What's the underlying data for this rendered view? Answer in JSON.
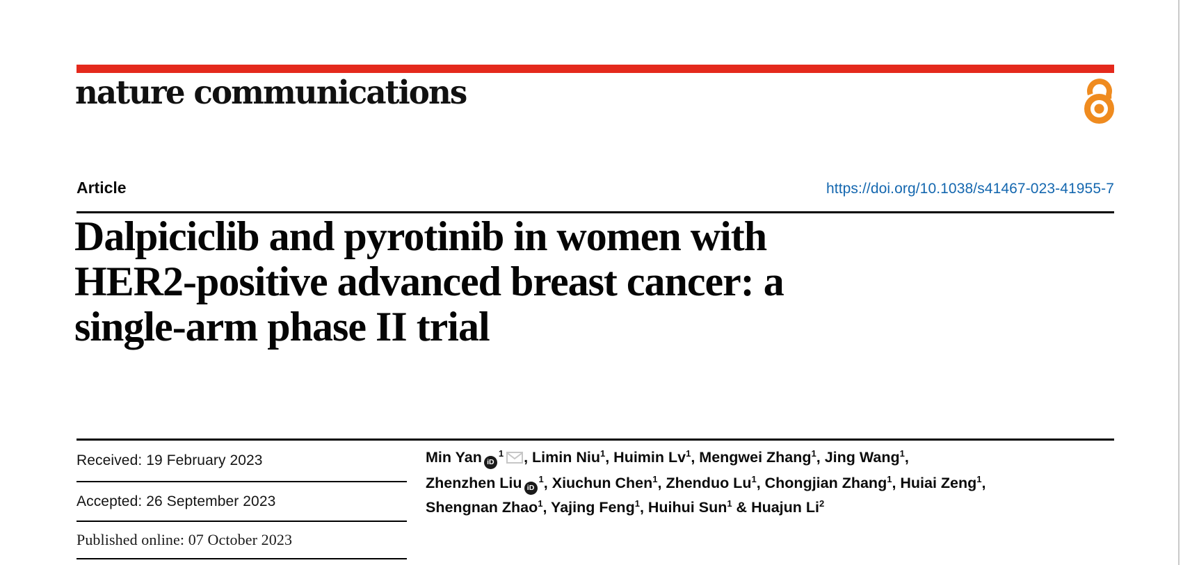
{
  "journal": {
    "name": "nature communications",
    "open_access_icon": "open-access-padlock"
  },
  "article": {
    "type_label": "Article",
    "doi": "https://doi.org/10.1038/s41467-023-41955-7",
    "title_lines": [
      "Dalpiciclib and pyrotinib in women with",
      "HER2-positive advanced breast cancer: a",
      "single-arm phase II trial"
    ]
  },
  "history": {
    "received": "Received: 19 February 2023",
    "accepted": "Accepted: 26 September 2023",
    "published": "Published online: 07 October 2023"
  },
  "authors": {
    "lines": [
      [
        {
          "name": "Min Yan",
          "orcid": true,
          "sup": "1",
          "email": true,
          "sep": ", "
        },
        {
          "name": "Limin Niu",
          "sup": "1",
          "sep": ", "
        },
        {
          "name": "Huimin Lv",
          "sup": "1",
          "sep": ", "
        },
        {
          "name": "Mengwei Zhang",
          "sup": "1",
          "sep": ", "
        },
        {
          "name": "Jing Wang",
          "sup": "1",
          "sep": ","
        }
      ],
      [
        {
          "name": "Zhenzhen Liu",
          "orcid": true,
          "sup": "1",
          "sep": ", "
        },
        {
          "name": "Xiuchun Chen",
          "sup": "1",
          "sep": ", "
        },
        {
          "name": "Zhenduo Lu",
          "sup": "1",
          "sep": ", "
        },
        {
          "name": "Chongjian Zhang",
          "sup": "1",
          "sep": ", "
        },
        {
          "name": "Huiai Zeng",
          "sup": "1",
          "sep": ","
        }
      ],
      [
        {
          "name": "Shengnan Zhao",
          "sup": "1",
          "sep": ", "
        },
        {
          "name": "Yajing Feng",
          "sup": "1",
          "sep": ", "
        },
        {
          "name": "Huihui Sun",
          "sup": "1",
          "sep": " & "
        },
        {
          "name": "Huajun Li",
          "sup": "2",
          "sep": ""
        }
      ]
    ]
  },
  "icons": {
    "orcid_text": "iD"
  },
  "colors": {
    "brand_red": "#e4291c",
    "doi_blue": "#1467af",
    "open_access_orange": "#ef8b1f",
    "text_black": "#0b0b0b",
    "envelope_gray": "#c6c6c6"
  }
}
